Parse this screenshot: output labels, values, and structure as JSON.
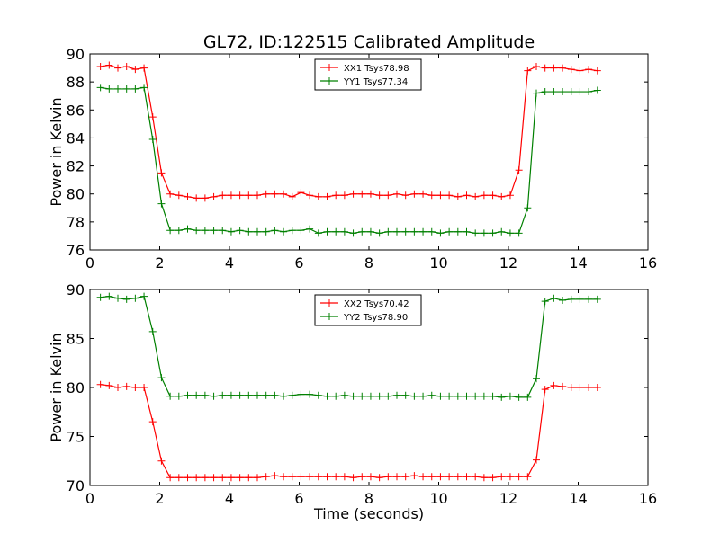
{
  "figure": {
    "title": "GL72, ID:122515 Calibrated Amplitude",
    "xlabel": "Time (seconds)"
  },
  "chart_data": [
    {
      "type": "line",
      "title": "GL72, ID:122515 Calibrated Amplitude",
      "xlabel": "",
      "ylabel": "Power in Kelvin",
      "xlim": [
        0,
        16
      ],
      "ylim": [
        76,
        90
      ],
      "xticks": [
        0,
        2,
        4,
        6,
        8,
        10,
        12,
        14,
        16
      ],
      "yticks": [
        76,
        78,
        80,
        82,
        84,
        86,
        88,
        90
      ],
      "grid": false,
      "legend": "top-center",
      "x": [
        0.3,
        0.55,
        0.8,
        1.05,
        1.3,
        1.55,
        1.8,
        2.05,
        2.3,
        2.55,
        2.8,
        3.05,
        3.3,
        3.55,
        3.8,
        4.05,
        4.3,
        4.55,
        4.8,
        5.05,
        5.3,
        5.55,
        5.8,
        6.05,
        6.3,
        6.55,
        6.8,
        7.05,
        7.3,
        7.55,
        7.8,
        8.05,
        8.3,
        8.55,
        8.8,
        9.05,
        9.3,
        9.55,
        9.8,
        10.05,
        10.3,
        10.55,
        10.8,
        11.05,
        11.3,
        11.55,
        11.8,
        12.05,
        12.3,
        12.55,
        12.8,
        13.05,
        13.3,
        13.55,
        13.8,
        14.05,
        14.3,
        14.55
      ],
      "series": [
        {
          "name": "XX1 Tsys78.98",
          "color": "#ff0000",
          "values": [
            89.1,
            89.2,
            89.0,
            89.1,
            88.9,
            89.0,
            85.5,
            81.5,
            80.0,
            79.9,
            79.8,
            79.7,
            79.7,
            79.8,
            79.9,
            79.9,
            79.9,
            79.9,
            79.9,
            80.0,
            80.0,
            80.0,
            79.8,
            80.1,
            79.9,
            79.8,
            79.8,
            79.9,
            79.9,
            80.0,
            80.0,
            80.0,
            79.9,
            79.9,
            80.0,
            79.9,
            80.0,
            80.0,
            79.9,
            79.9,
            79.9,
            79.8,
            79.9,
            79.8,
            79.9,
            79.9,
            79.8,
            79.9,
            81.7,
            88.8,
            89.1,
            89.0,
            89.0,
            89.0,
            88.9,
            88.8,
            88.9,
            88.8
          ]
        },
        {
          "name": "YY1 Tsys77.34",
          "color": "#008000",
          "values": [
            87.6,
            87.5,
            87.5,
            87.5,
            87.5,
            87.6,
            83.9,
            79.3,
            77.4,
            77.4,
            77.5,
            77.4,
            77.4,
            77.4,
            77.4,
            77.3,
            77.4,
            77.3,
            77.3,
            77.3,
            77.4,
            77.3,
            77.4,
            77.4,
            77.5,
            77.2,
            77.3,
            77.3,
            77.3,
            77.2,
            77.3,
            77.3,
            77.2,
            77.3,
            77.3,
            77.3,
            77.3,
            77.3,
            77.3,
            77.2,
            77.3,
            77.3,
            77.3,
            77.2,
            77.2,
            77.2,
            77.3,
            77.2,
            77.2,
            79.0,
            87.2,
            87.3,
            87.3,
            87.3,
            87.3,
            87.3,
            87.3,
            87.4
          ]
        }
      ]
    },
    {
      "type": "line",
      "title": "",
      "xlabel": "Time (seconds)",
      "ylabel": "Power in Kelvin",
      "xlim": [
        0,
        16
      ],
      "ylim": [
        70,
        90
      ],
      "xticks": [
        0,
        2,
        4,
        6,
        8,
        10,
        12,
        14,
        16
      ],
      "yticks": [
        70,
        75,
        80,
        85,
        90
      ],
      "grid": false,
      "legend": "top-center",
      "x": [
        0.3,
        0.55,
        0.8,
        1.05,
        1.3,
        1.55,
        1.8,
        2.05,
        2.3,
        2.55,
        2.8,
        3.05,
        3.3,
        3.55,
        3.8,
        4.05,
        4.3,
        4.55,
        4.8,
        5.05,
        5.3,
        5.55,
        5.8,
        6.05,
        6.3,
        6.55,
        6.8,
        7.05,
        7.3,
        7.55,
        7.8,
        8.05,
        8.3,
        8.55,
        8.8,
        9.05,
        9.3,
        9.55,
        9.8,
        10.05,
        10.3,
        10.55,
        10.8,
        11.05,
        11.3,
        11.55,
        11.8,
        12.05,
        12.3,
        12.55,
        12.8,
        13.05,
        13.3,
        13.55,
        13.8,
        14.05,
        14.3,
        14.55
      ],
      "series": [
        {
          "name": "XX2 Tsys70.42",
          "color": "#ff0000",
          "values": [
            80.3,
            80.2,
            80.0,
            80.1,
            80.0,
            80.0,
            76.5,
            72.5,
            70.8,
            70.8,
            70.8,
            70.8,
            70.8,
            70.8,
            70.8,
            70.8,
            70.8,
            70.8,
            70.8,
            70.9,
            71.0,
            70.9,
            70.9,
            70.9,
            70.9,
            70.9,
            70.9,
            70.9,
            70.9,
            70.8,
            70.9,
            70.9,
            70.8,
            70.9,
            70.9,
            70.9,
            71.0,
            70.9,
            70.9,
            70.9,
            70.9,
            70.9,
            70.9,
            70.9,
            70.8,
            70.8,
            70.9,
            70.9,
            70.9,
            70.9,
            72.6,
            79.8,
            80.2,
            80.1,
            80.0,
            80.0,
            80.0,
            80.0
          ]
        },
        {
          "name": "YY2 Tsys78.90",
          "color": "#008000",
          "values": [
            89.2,
            89.3,
            89.1,
            89.0,
            89.1,
            89.3,
            85.7,
            81.0,
            79.1,
            79.1,
            79.2,
            79.2,
            79.2,
            79.1,
            79.2,
            79.2,
            79.2,
            79.2,
            79.2,
            79.2,
            79.2,
            79.1,
            79.2,
            79.3,
            79.3,
            79.2,
            79.1,
            79.1,
            79.2,
            79.1,
            79.1,
            79.1,
            79.1,
            79.1,
            79.2,
            79.2,
            79.1,
            79.1,
            79.2,
            79.1,
            79.1,
            79.1,
            79.1,
            79.1,
            79.1,
            79.1,
            79.0,
            79.1,
            79.0,
            79.0,
            80.9,
            88.8,
            89.1,
            88.9,
            89.0,
            89.0,
            89.0,
            89.0
          ]
        }
      ]
    }
  ]
}
